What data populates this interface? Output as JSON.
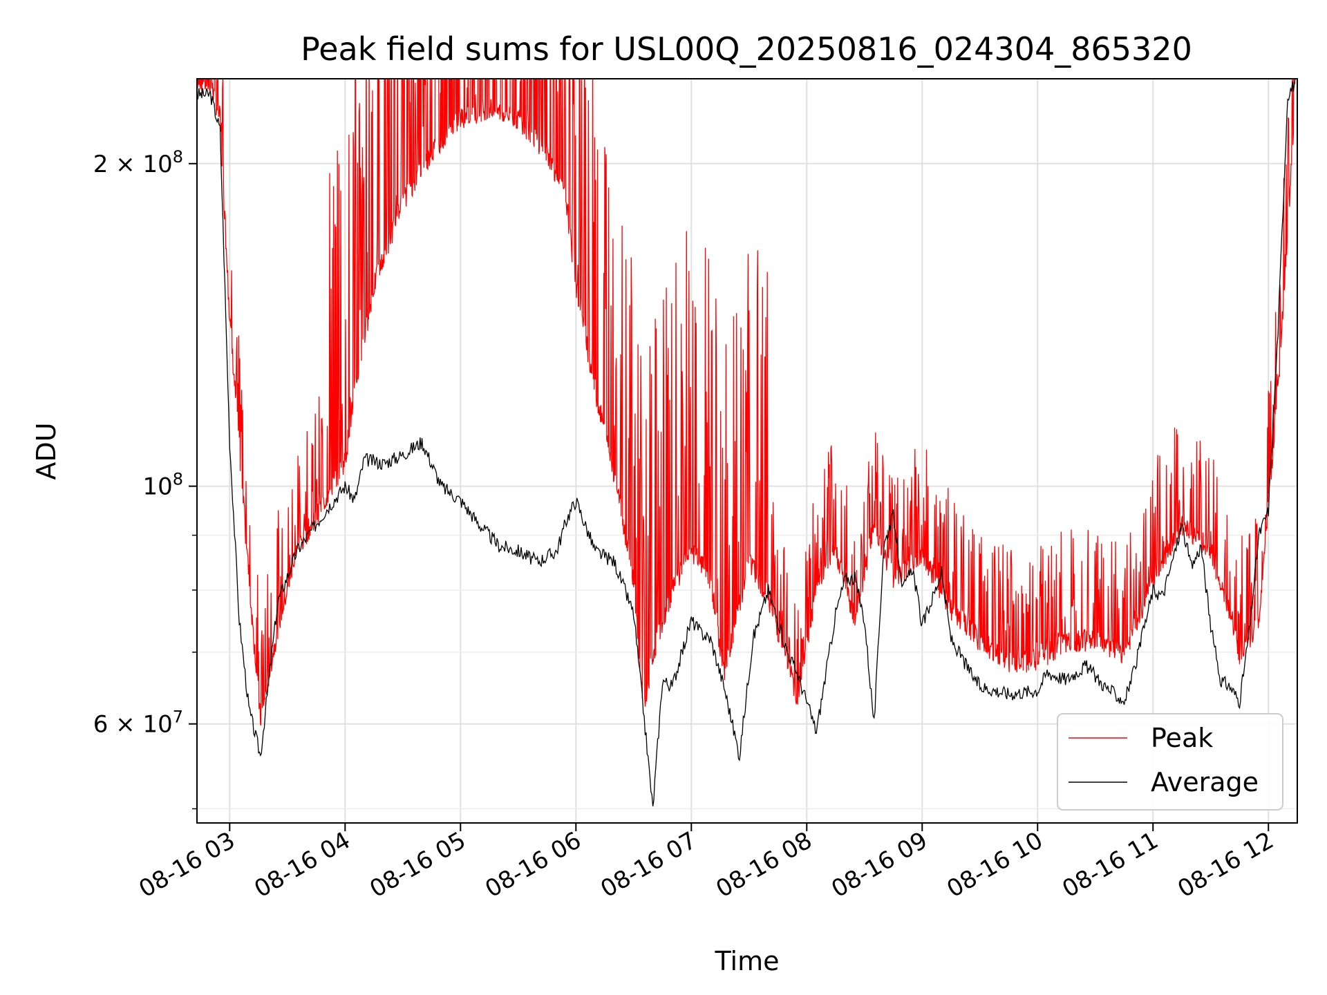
{
  "chart_data": {
    "type": "line",
    "title": "Peak field sums for USL00Q_20250816_024304_865320",
    "xlabel": "Time",
    "ylabel": "ADU",
    "y_scale": "log",
    "grid": true,
    "legend_position": "lower-right",
    "xlim": [
      "08-16 02:43",
      "08-16 12:15"
    ],
    "ylim": [
      48500000,
      240000000
    ],
    "x_tick_labels": [
      "08-16 03",
      "08-16 04",
      "08-16 05",
      "08-16 06",
      "08-16 07",
      "08-16 08",
      "08-16 09",
      "08-16 10",
      "08-16 11",
      "08-16 12"
    ],
    "y_tick_labels": [
      {
        "value": 200000000,
        "base": "2 × 10",
        "exp": "8"
      },
      {
        "value": 100000000,
        "base": "10",
        "exp": "8"
      },
      {
        "value": 60000000,
        "base": "6 × 10",
        "exp": "7"
      }
    ],
    "series": [
      {
        "name": "Peak",
        "color": "#ff0000",
        "spiky": true,
        "x": [
          "08-16 02:43",
          "08-16 02:50",
          "08-16 02:55",
          "08-16 03:00",
          "08-16 03:10",
          "08-16 03:16",
          "08-16 03:25",
          "08-16 03:35",
          "08-16 03:50",
          "08-16 04:00",
          "08-16 04:05",
          "08-16 04:15",
          "08-16 04:30",
          "08-16 04:45",
          "08-16 05:00",
          "08-16 05:15",
          "08-16 05:30",
          "08-16 05:45",
          "08-16 05:55",
          "08-16 06:00",
          "08-16 06:10",
          "08-16 06:20",
          "08-16 06:30",
          "08-16 06:35",
          "08-16 06:40",
          "08-16 06:50",
          "08-16 07:00",
          "08-16 07:10",
          "08-16 07:17",
          "08-16 07:30",
          "08-16 07:40",
          "08-16 07:55",
          "08-16 08:05",
          "08-16 08:15",
          "08-16 08:25",
          "08-16 08:35",
          "08-16 08:45",
          "08-16 09:00",
          "08-16 09:15",
          "08-16 09:30",
          "08-16 09:45",
          "08-16 10:00",
          "08-16 10:15",
          "08-16 10:30",
          "08-16 10:45",
          "08-16 11:00",
          "08-16 11:15",
          "08-16 11:30",
          "08-16 11:45",
          "08-16 11:55",
          "08-16 12:05",
          "08-16 12:15"
        ],
        "y": [
          232000000,
          232000000,
          215000000,
          140000000,
          80000000,
          59000000,
          72000000,
          85000000,
          95000000,
          103000000,
          120000000,
          150000000,
          180000000,
          200000000,
          215000000,
          220000000,
          215000000,
          200000000,
          180000000,
          150000000,
          120000000,
          100000000,
          80000000,
          60000000,
          68000000,
          78000000,
          85000000,
          80000000,
          65000000,
          83000000,
          77000000,
          62000000,
          78000000,
          85000000,
          73000000,
          90000000,
          80000000,
          84000000,
          75000000,
          70000000,
          67000000,
          67000000,
          70000000,
          70000000,
          68000000,
          80000000,
          90000000,
          85000000,
          68000000,
          73000000,
          120000000,
          240000000
        ]
      },
      {
        "name": "Average",
        "color": "#000000",
        "spiky": false,
        "x": [
          "08-16 02:43",
          "08-16 02:50",
          "08-16 02:55",
          "08-16 03:00",
          "08-16 03:05",
          "08-16 03:10",
          "08-16 03:16",
          "08-16 03:20",
          "08-16 03:25",
          "08-16 03:35",
          "08-16 03:50",
          "08-16 04:00",
          "08-16 04:05",
          "08-16 04:10",
          "08-16 04:20",
          "08-16 04:30",
          "08-16 04:40",
          "08-16 04:50",
          "08-16 05:00",
          "08-16 05:10",
          "08-16 05:20",
          "08-16 05:30",
          "08-16 05:40",
          "08-16 05:50",
          "08-16 05:55",
          "08-16 06:00",
          "08-16 06:10",
          "08-16 06:20",
          "08-16 06:30",
          "08-16 06:35",
          "08-16 06:40",
          "08-16 06:45",
          "08-16 06:50",
          "08-16 07:00",
          "08-16 07:05",
          "08-16 07:10",
          "08-16 07:17",
          "08-16 07:25",
          "08-16 07:32",
          "08-16 07:40",
          "08-16 07:50",
          "08-16 07:55",
          "08-16 08:05",
          "08-16 08:15",
          "08-16 08:20",
          "08-16 08:25",
          "08-16 08:30",
          "08-16 08:35",
          "08-16 08:40",
          "08-16 08:45",
          "08-16 08:50",
          "08-16 08:55",
          "08-16 09:00",
          "08-16 09:10",
          "08-16 09:15",
          "08-16 09:25",
          "08-16 09:30",
          "08-16 09:45",
          "08-16 10:00",
          "08-16 10:05",
          "08-16 10:15",
          "08-16 10:25",
          "08-16 10:35",
          "08-16 10:40",
          "08-16 10:45",
          "08-16 10:50",
          "08-16 11:00",
          "08-16 11:05",
          "08-16 11:10",
          "08-16 11:15",
          "08-16 11:20",
          "08-16 11:25",
          "08-16 11:30",
          "08-16 11:35",
          "08-16 11:40",
          "08-16 11:45",
          "08-16 11:50",
          "08-16 11:55",
          "08-16 12:00",
          "08-16 12:05",
          "08-16 12:10",
          "08-16 12:15"
        ],
        "y": [
          232000000,
          232000000,
          215000000,
          110000000,
          75000000,
          62000000,
          56000000,
          65000000,
          78000000,
          87000000,
          95000000,
          100000000,
          97000000,
          106000000,
          105000000,
          107000000,
          110000000,
          100000000,
          97000000,
          92000000,
          88000000,
          87000000,
          85000000,
          87000000,
          93000000,
          97000000,
          87000000,
          85000000,
          76000000,
          62000000,
          50000000,
          66000000,
          65000000,
          75000000,
          73000000,
          72000000,
          65000000,
          56000000,
          72000000,
          80000000,
          70000000,
          67000000,
          59000000,
          76000000,
          82000000,
          82000000,
          75000000,
          60000000,
          88000000,
          94000000,
          80000000,
          84000000,
          74000000,
          83000000,
          72000000,
          67000000,
          65000000,
          64000000,
          64500000,
          67000000,
          66000000,
          68000000,
          65000000,
          64000000,
          63000000,
          67000000,
          80000000,
          79000000,
          85000000,
          92000000,
          84000000,
          88000000,
          74000000,
          66000000,
          65000000,
          63000000,
          73000000,
          90000000,
          95000000,
          140000000,
          232000000,
          240000000
        ]
      }
    ]
  }
}
